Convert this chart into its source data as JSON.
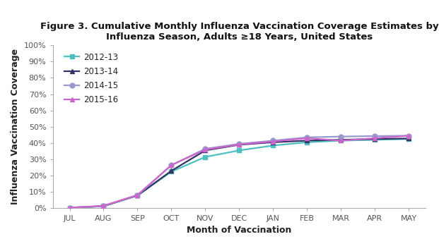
{
  "title": "Figure 3. Cumulative Monthly Influenza Vaccination Coverage Estimates by\nInfluenza Season, Adults ≥18 Years, United States",
  "xlabel": "Month of Vaccination",
  "ylabel": "Influenza Vaccination Coverage",
  "months": [
    "JUL",
    "AUG",
    "SEP",
    "OCT",
    "NOV",
    "DEC",
    "JAN",
    "FEB",
    "MAR",
    "APR",
    "MAY"
  ],
  "series": [
    {
      "label": "2012-13",
      "color": "#4DBFBF",
      "marker": "s",
      "markersize": 5,
      "values": [
        0.004,
        0.013,
        0.078,
        0.225,
        0.315,
        0.355,
        0.385,
        0.405,
        0.415,
        0.42,
        0.425
      ]
    },
    {
      "label": "2013-14",
      "color": "#333366",
      "marker": "^",
      "markersize": 5,
      "values": [
        0.004,
        0.013,
        0.079,
        0.23,
        0.355,
        0.39,
        0.405,
        0.415,
        0.42,
        0.425,
        0.428
      ]
    },
    {
      "label": "2014-15",
      "color": "#9999CC",
      "marker": "o",
      "markersize": 5,
      "values": [
        0.004,
        0.013,
        0.08,
        0.265,
        0.365,
        0.395,
        0.415,
        0.435,
        0.44,
        0.443,
        0.445
      ]
    },
    {
      "label": "2015-16",
      "color": "#CC66CC",
      "marker": "^",
      "markersize": 5,
      "values": [
        0.004,
        0.016,
        0.082,
        0.265,
        0.36,
        0.392,
        0.41,
        0.43,
        0.415,
        0.43,
        0.445
      ]
    }
  ],
  "ylim": [
    0,
    1.0
  ],
  "yticks": [
    0.0,
    0.1,
    0.2,
    0.3,
    0.4,
    0.5,
    0.6,
    0.7,
    0.8,
    0.9,
    1.0
  ],
  "background_color": "#FFFFFF",
  "title_fontsize": 9.5,
  "axis_label_fontsize": 9,
  "tick_fontsize": 8,
  "legend_fontsize": 8.5,
  "spine_color": "#AAAAAA",
  "tick_color": "#555555"
}
